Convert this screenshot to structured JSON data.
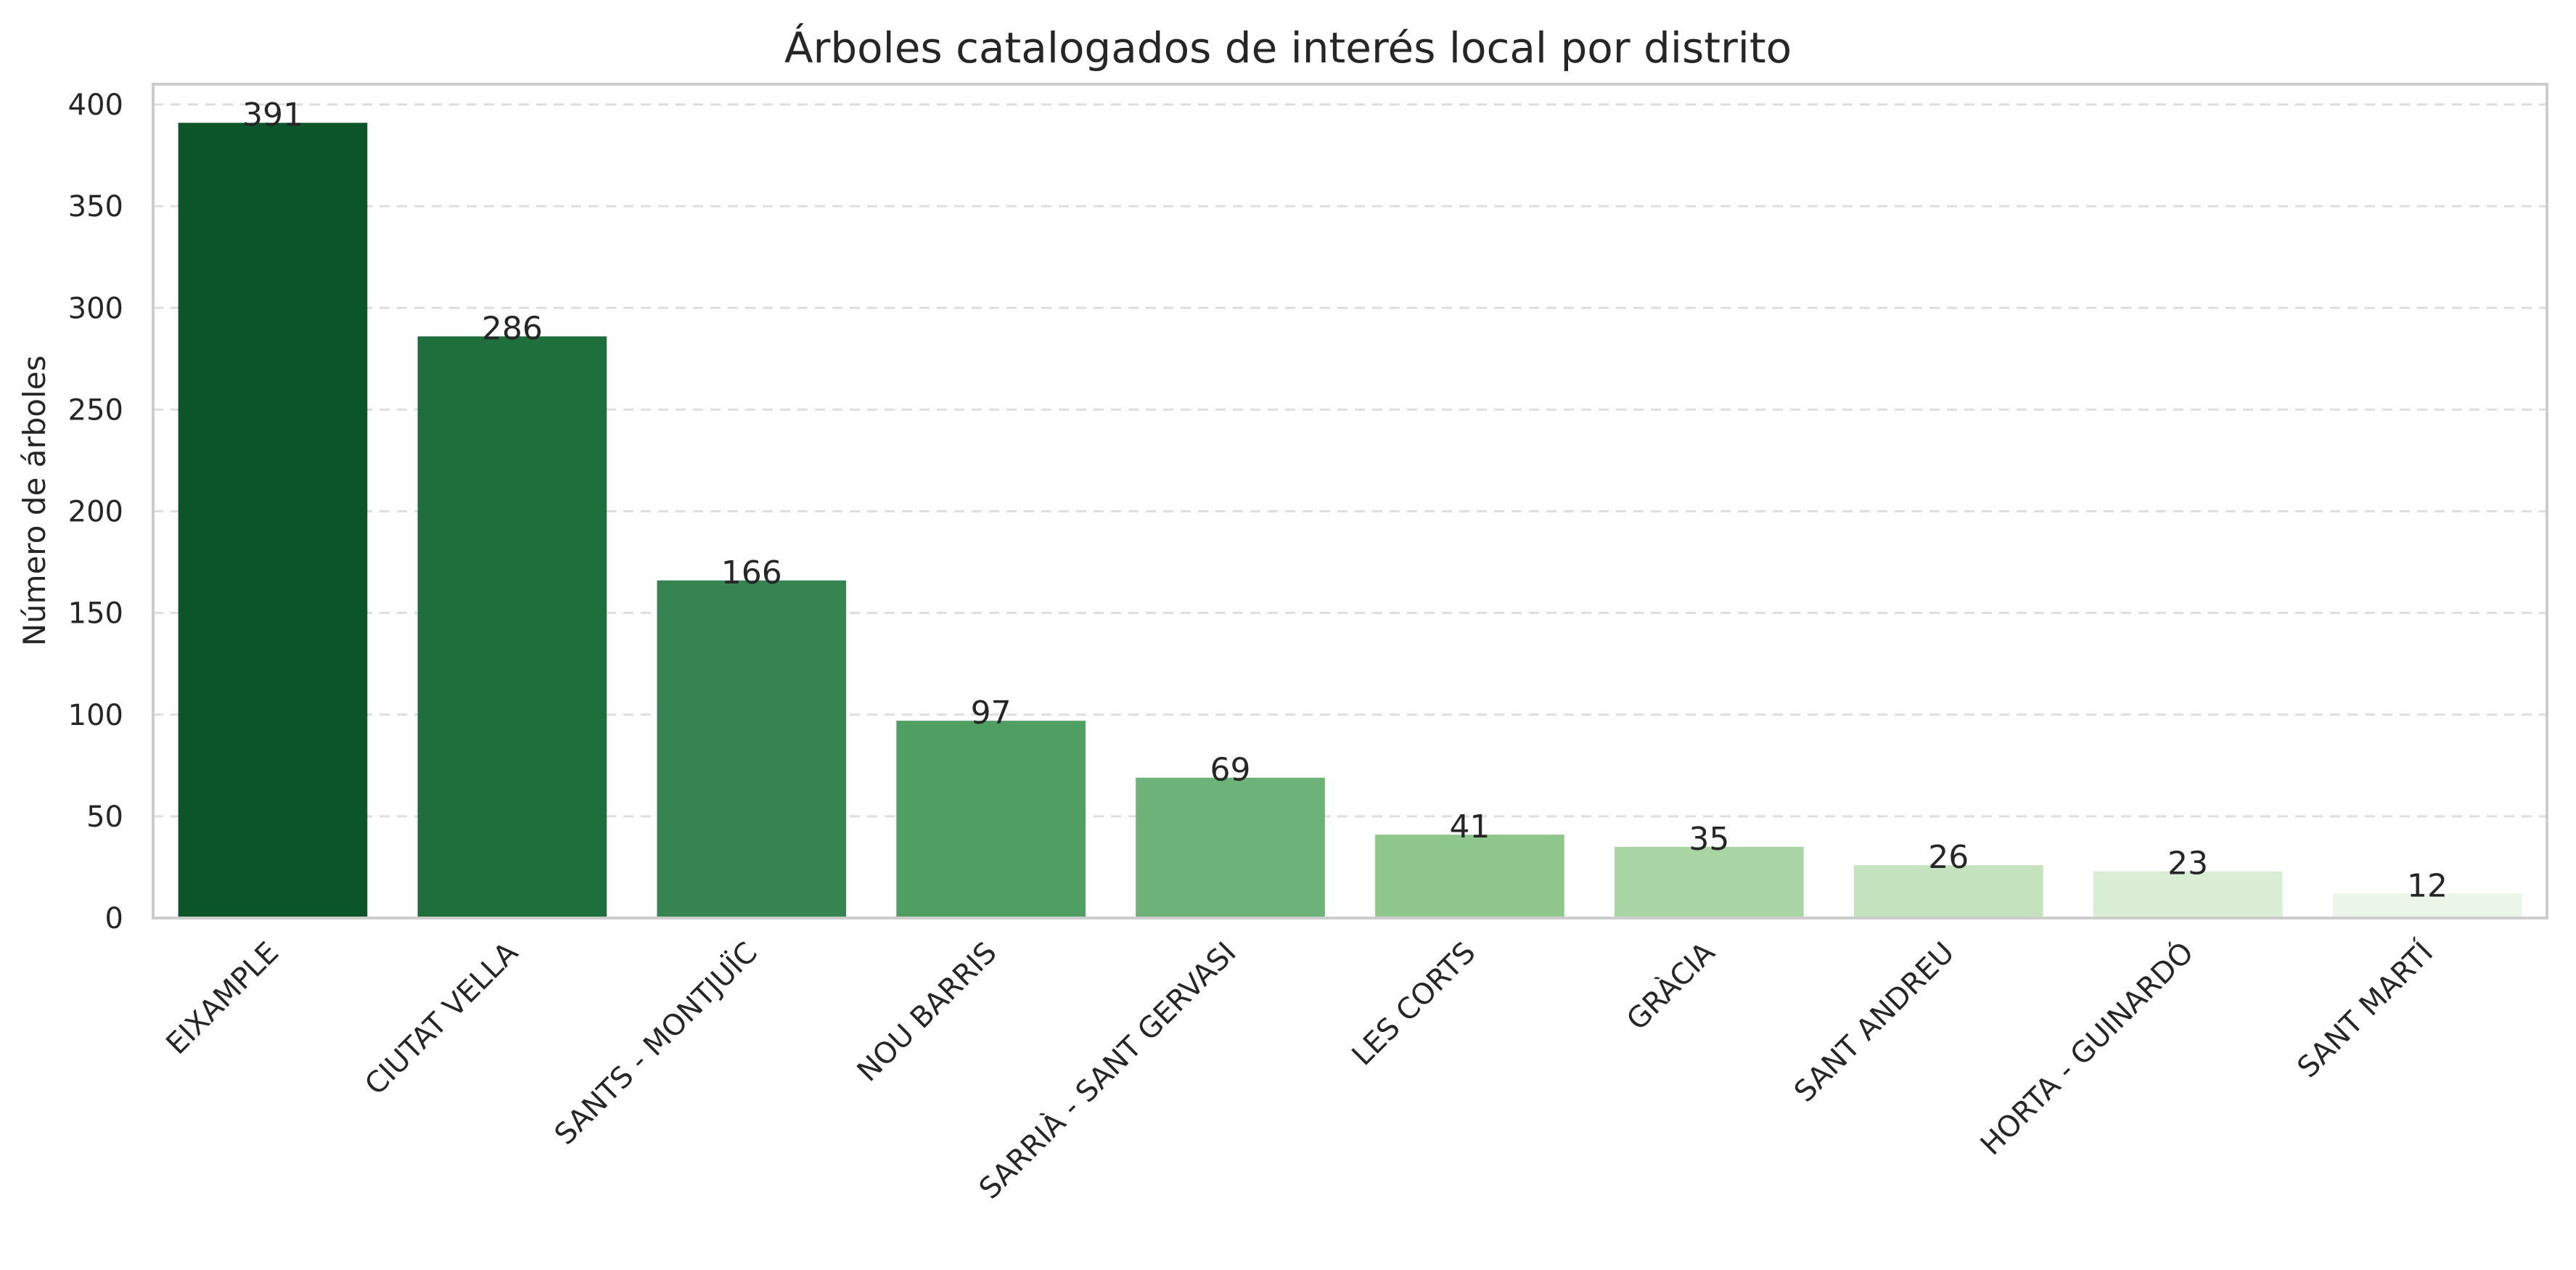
{
  "chart_data": {
    "type": "bar",
    "title": "Árboles catalogados de interés local por distrito",
    "xlabel": "",
    "ylabel": "Número de árboles",
    "categories": [
      "EIXAMPLE",
      "CIUTAT VELLA",
      "SANTS - MONTJUÏC",
      "NOU BARRIS",
      "SARRIÀ - SANT GERVASI",
      "LES CORTS",
      "GRÀCIA",
      "SANT ANDREU",
      "HORTA - GUINARDÓ",
      "SANT MARTÍ"
    ],
    "values": [
      391,
      286,
      166,
      97,
      69,
      41,
      35,
      26,
      23,
      12
    ],
    "colors": [
      "#0c552b",
      "#1f6f3d",
      "#358451",
      "#4f9f62",
      "#6db278",
      "#8ec68c",
      "#a9d4a3",
      "#c5e2be",
      "#daeed5",
      "#ebf6e8"
    ],
    "ylim": [
      0,
      410
    ],
    "yticks": [
      0,
      50,
      100,
      150,
      200,
      250,
      300,
      350,
      400
    ],
    "grid": "horizontal dashed",
    "legend": "none"
  }
}
